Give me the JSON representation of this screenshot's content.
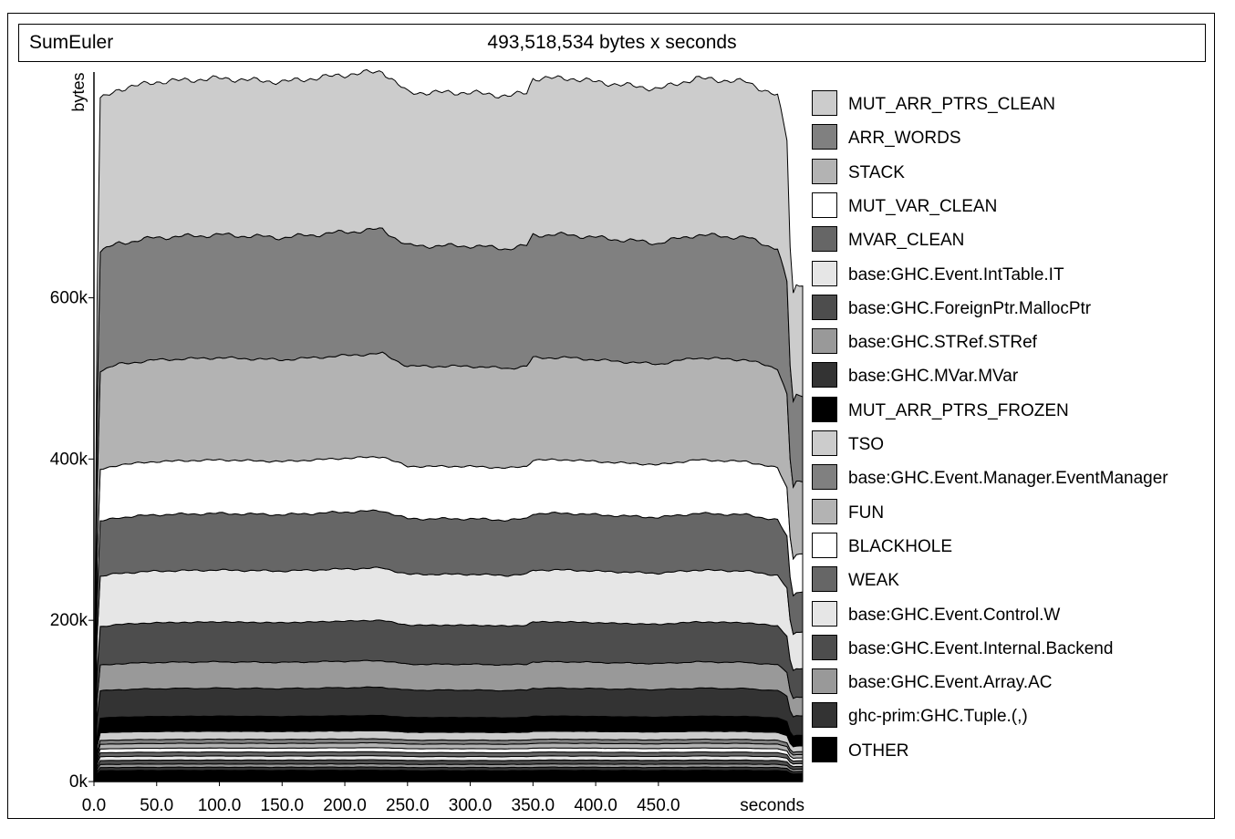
{
  "header": {
    "program": "SumEuler",
    "total": "493,518,534 bytes x seconds"
  },
  "chart_data": {
    "type": "area",
    "title": "SumEuler",
    "subtitle": "493,518,534 bytes x seconds",
    "xlabel": "seconds",
    "ylabel": "bytes",
    "xlim": [
      0,
      565
    ],
    "ylim": [
      0,
      880000
    ],
    "x_ticks": [
      "0.0",
      "50.0",
      "100.0",
      "150.0",
      "200.0",
      "250.0",
      "300.0",
      "350.0",
      "400.0",
      "450.0"
    ],
    "x_tick_values": [
      0,
      50,
      100,
      150,
      200,
      250,
      300,
      350,
      400,
      450
    ],
    "y_ticks": [
      "0k",
      "200k",
      "400k",
      "600k"
    ],
    "y_tick_values": [
      0,
      200000,
      400000,
      600000
    ],
    "legend_position": "right",
    "series_order": "top-to-bottom",
    "series": [
      {
        "name": "MUT_ARR_PTRS_CLEAN",
        "color": "#cccccc",
        "value": 196000
      },
      {
        "name": "ARR_WORDS",
        "color": "#808080",
        "value": 154000
      },
      {
        "name": "STACK",
        "color": "#b3b3b3",
        "value": 128000
      },
      {
        "name": "MUT_VAR_CLEAN",
        "color": "#ffffff",
        "value": 67000
      },
      {
        "name": "MVAR_CLEAN",
        "color": "#666666",
        "value": 71000
      },
      {
        "name": "base:GHC.Event.IntTable.IT",
        "color": "#e6e6e6",
        "value": 65000
      },
      {
        "name": "base:GHC.ForeignPtr.MallocPtr",
        "color": "#4d4d4d",
        "value": 50000
      },
      {
        "name": "base:GHC.STRef.STRef",
        "color": "#999999",
        "value": 33000
      },
      {
        "name": "base:GHC.MVar.MVar",
        "color": "#333333",
        "value": 35000
      },
      {
        "name": "MUT_ARR_PTRS_FROZEN",
        "color": "#000000",
        "value": 19000
      },
      {
        "name": "TSO",
        "color": "#cccccc",
        "value": 10000
      },
      {
        "name": "base:GHC.Event.Manager.EventManager",
        "color": "#808080",
        "value": 5000
      },
      {
        "name": "FUN",
        "color": "#b3b3b3",
        "value": 6000
      },
      {
        "name": "BLACKHOLE",
        "color": "#ffffff",
        "value": 5000
      },
      {
        "name": "WEAK",
        "color": "#666666",
        "value": 5000
      },
      {
        "name": "base:GHC.Event.Control.W",
        "color": "#e6e6e6",
        "value": 5000
      },
      {
        "name": "base:GHC.Event.Internal.Backend",
        "color": "#4d4d4d",
        "value": 5000
      },
      {
        "name": "base:GHC.Event.Array.AC",
        "color": "#999999",
        "value": 4000
      },
      {
        "name": "ghc-prim:GHC.Tuple.(,)",
        "color": "#333333",
        "value": 4000
      },
      {
        "name": "OTHER",
        "color": "#000000",
        "value": 14000
      }
    ],
    "total_profile": {
      "x": [
        0,
        2,
        5,
        20,
        50,
        100,
        150,
        175,
        200,
        230,
        240,
        250,
        300,
        330,
        345,
        350,
        380,
        400,
        450,
        480,
        520,
        545,
        553,
        556,
        560,
        565
      ],
      "scale": [
        0,
        0.62,
        0.96,
        0.975,
        0.985,
        0.99,
        0.985,
        0.99,
        0.995,
        1.0,
        0.985,
        0.97,
        0.97,
        0.965,
        0.97,
        0.99,
        0.99,
        0.985,
        0.975,
        0.99,
        0.985,
        0.965,
        0.9,
        0.68,
        0.7,
        0.7
      ]
    }
  }
}
